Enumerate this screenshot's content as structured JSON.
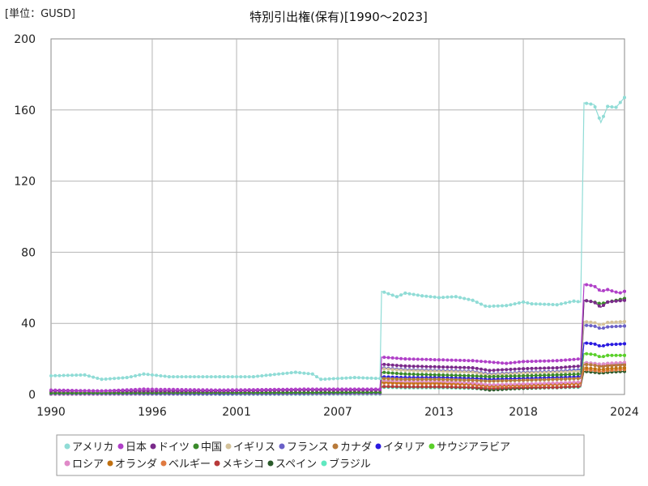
{
  "unit_label": "[単位：GUSD]",
  "chart_data": {
    "type": "line",
    "title": "特別引出権(保有)[1990～2023]",
    "xlabel": "",
    "ylabel": "",
    "xlim": [
      1990,
      2024
    ],
    "ylim": [
      0,
      200
    ],
    "x_ticks": [
      1990,
      1996,
      2001,
      2007,
      2013,
      2018,
      2024
    ],
    "y_ticks": [
      0,
      40,
      80,
      120,
      160,
      200
    ],
    "grid": true,
    "legend_position": "bottom",
    "series": [
      {
        "name": "アメリカ",
        "color": "#90dcd6",
        "points": [
          [
            1990,
            10.5
          ],
          [
            1992,
            11
          ],
          [
            1993,
            8.5
          ],
          [
            1994.5,
            9.5
          ],
          [
            1995.5,
            11.5
          ],
          [
            1997,
            10
          ],
          [
            2000,
            10
          ],
          [
            2002,
            10
          ],
          [
            2003,
            11
          ],
          [
            2004.5,
            12.5
          ],
          [
            2005.5,
            11.5
          ],
          [
            2006,
            8.5
          ],
          [
            2008,
            9.5
          ],
          [
            2009.5,
            9
          ],
          [
            2009.6,
            58
          ],
          [
            2010.5,
            55
          ],
          [
            2011,
            57
          ],
          [
            2012,
            55.5
          ],
          [
            2013,
            54.5
          ],
          [
            2014,
            55
          ],
          [
            2015,
            53
          ],
          [
            2015.8,
            49.5
          ],
          [
            2017,
            50
          ],
          [
            2018,
            52
          ],
          [
            2018.5,
            51
          ],
          [
            2020,
            50.5
          ],
          [
            2021,
            52.5
          ],
          [
            2021.4,
            52
          ],
          [
            2021.6,
            164
          ],
          [
            2022.2,
            163
          ],
          [
            2022.6,
            153
          ],
          [
            2023,
            162
          ],
          [
            2023.5,
            161.5
          ],
          [
            2024,
            167
          ]
        ]
      },
      {
        "name": "日本",
        "color": "#b040c8",
        "points": [
          [
            1990,
            2.5
          ],
          [
            1993,
            2
          ],
          [
            1995.5,
            3
          ],
          [
            2000,
            2.5
          ],
          [
            2005,
            3
          ],
          [
            2009.5,
            3
          ],
          [
            2009.6,
            21
          ],
          [
            2011,
            20
          ],
          [
            2013,
            19.5
          ],
          [
            2015,
            19
          ],
          [
            2017,
            17.5
          ],
          [
            2018,
            18.5
          ],
          [
            2020,
            19
          ],
          [
            2021.4,
            20
          ],
          [
            2021.6,
            62
          ],
          [
            2022.2,
            61
          ],
          [
            2022.6,
            58
          ],
          [
            2023,
            59
          ],
          [
            2023.7,
            57
          ],
          [
            2024,
            58
          ]
        ]
      },
      {
        "name": "ドイツ",
        "color": "#7a2a8a",
        "points": [
          [
            1990,
            2
          ],
          [
            1995,
            2
          ],
          [
            2000,
            2
          ],
          [
            2005,
            2.5
          ],
          [
            2009.5,
            2.5
          ],
          [
            2009.6,
            17
          ],
          [
            2011,
            16
          ],
          [
            2013,
            15.5
          ],
          [
            2015,
            15
          ],
          [
            2016,
            13.5
          ],
          [
            2018,
            14.5
          ],
          [
            2020,
            15
          ],
          [
            2021.4,
            16
          ],
          [
            2021.6,
            53
          ],
          [
            2022.2,
            52
          ],
          [
            2022.6,
            49
          ],
          [
            2023,
            52
          ],
          [
            2024,
            53
          ]
        ]
      },
      {
        "name": "中国",
        "color": "#3a8a2a",
        "points": [
          [
            1990,
            0.8
          ],
          [
            2000,
            1
          ],
          [
            2009.5,
            1.2
          ],
          [
            2009.6,
            12.5
          ],
          [
            2011,
            11.5
          ],
          [
            2013,
            11
          ],
          [
            2015,
            10.5
          ],
          [
            2016,
            10
          ],
          [
            2018,
            10.5
          ],
          [
            2020,
            11
          ],
          [
            2021.4,
            11.5
          ],
          [
            2021.6,
            53
          ],
          [
            2022.2,
            52
          ],
          [
            2022.6,
            51
          ],
          [
            2023,
            52
          ],
          [
            2024,
            54
          ]
        ]
      },
      {
        "name": "イギリス",
        "color": "#d4c29a",
        "points": [
          [
            1990,
            1
          ],
          [
            2000,
            1
          ],
          [
            2009.5,
            1.2
          ],
          [
            2009.6,
            14.5
          ],
          [
            2011,
            13.5
          ],
          [
            2013,
            13
          ],
          [
            2015,
            12.5
          ],
          [
            2016,
            11
          ],
          [
            2018,
            12
          ],
          [
            2020,
            12.5
          ],
          [
            2021.4,
            13
          ],
          [
            2021.6,
            41
          ],
          [
            2022.2,
            40.5
          ],
          [
            2022.6,
            39
          ],
          [
            2023,
            40.5
          ],
          [
            2024,
            41
          ]
        ]
      },
      {
        "name": "フランス",
        "color": "#6a60c8",
        "points": [
          [
            1990,
            0.5
          ],
          [
            2000,
            0.8
          ],
          [
            2009.5,
            1
          ],
          [
            2009.6,
            15
          ],
          [
            2011,
            14
          ],
          [
            2013,
            13.5
          ],
          [
            2015,
            13
          ],
          [
            2016,
            11.5
          ],
          [
            2018,
            12.5
          ],
          [
            2020,
            13
          ],
          [
            2021.4,
            14
          ],
          [
            2021.6,
            39
          ],
          [
            2022.2,
            38.5
          ],
          [
            2022.6,
            37
          ],
          [
            2023,
            38
          ],
          [
            2024,
            38.5
          ]
        ]
      },
      {
        "name": "カナダ",
        "color": "#b87a3a",
        "points": [
          [
            1990,
            1
          ],
          [
            2000,
            1
          ],
          [
            2009.5,
            1.2
          ],
          [
            2009.6,
            9
          ],
          [
            2011,
            8.5
          ],
          [
            2013,
            8.5
          ],
          [
            2015,
            8
          ],
          [
            2016,
            7.5
          ],
          [
            2018,
            8
          ],
          [
            2020,
            8.5
          ],
          [
            2021.4,
            9
          ],
          [
            2021.6,
            17
          ],
          [
            2022.2,
            16.5
          ],
          [
            2022.6,
            15.5
          ],
          [
            2023,
            16
          ],
          [
            2024,
            16.5
          ]
        ]
      },
      {
        "name": "イタリア",
        "color": "#2a1ae0",
        "points": [
          [
            1990,
            0.5
          ],
          [
            2000,
            0.5
          ],
          [
            2009.5,
            0.8
          ],
          [
            2009.6,
            10
          ],
          [
            2011,
            9.5
          ],
          [
            2013,
            9.5
          ],
          [
            2015,
            9
          ],
          [
            2016,
            8.5
          ],
          [
            2018,
            9
          ],
          [
            2020,
            9.5
          ],
          [
            2021.4,
            10
          ],
          [
            2021.6,
            29
          ],
          [
            2022.2,
            28.5
          ],
          [
            2022.6,
            27
          ],
          [
            2023,
            28
          ],
          [
            2024,
            28.5
          ]
        ]
      },
      {
        "name": "サウジアラビア",
        "color": "#5ad02a",
        "points": [
          [
            1990,
            0.8
          ],
          [
            2000,
            0.8
          ],
          [
            2009.5,
            1
          ],
          [
            2009.6,
            9
          ],
          [
            2011,
            8.5
          ],
          [
            2013,
            8.5
          ],
          [
            2015,
            8
          ],
          [
            2016,
            7.5
          ],
          [
            2018,
            8
          ],
          [
            2020,
            8.5
          ],
          [
            2021.4,
            9
          ],
          [
            2021.6,
            23
          ],
          [
            2022.2,
            22.5
          ],
          [
            2022.6,
            21
          ],
          [
            2023,
            22
          ],
          [
            2024,
            22
          ]
        ]
      },
      {
        "name": "ロシア",
        "color": "#e08ac8",
        "points": [
          [
            1990,
            0.1
          ],
          [
            2000,
            0.3
          ],
          [
            2009.5,
            0.5
          ],
          [
            2009.6,
            8
          ],
          [
            2011,
            7.5
          ],
          [
            2013,
            7.5
          ],
          [
            2015,
            6.5
          ],
          [
            2016,
            5.5
          ],
          [
            2018,
            6
          ],
          [
            2020,
            6.5
          ],
          [
            2021.4,
            7
          ],
          [
            2021.6,
            18
          ],
          [
            2022.2,
            17.5
          ],
          [
            2022.6,
            17
          ],
          [
            2023,
            17.5
          ],
          [
            2024,
            18
          ]
        ]
      },
      {
        "name": "オランダ",
        "color": "#c07010",
        "points": [
          [
            1990,
            1
          ],
          [
            2000,
            1
          ],
          [
            2009.5,
            1
          ],
          [
            2009.6,
            7
          ],
          [
            2011,
            6.5
          ],
          [
            2013,
            6.5
          ],
          [
            2015,
            6
          ],
          [
            2016,
            5
          ],
          [
            2018,
            5.5
          ],
          [
            2020,
            6
          ],
          [
            2021.4,
            6.5
          ],
          [
            2021.6,
            15
          ],
          [
            2022.2,
            14.5
          ],
          [
            2022.6,
            14
          ],
          [
            2023,
            14.5
          ],
          [
            2024,
            15
          ]
        ]
      },
      {
        "name": "ベルギー",
        "color": "#e07a40",
        "points": [
          [
            1990,
            0.5
          ],
          [
            2000,
            0.5
          ],
          [
            2009.5,
            0.8
          ],
          [
            2009.6,
            6.5
          ],
          [
            2011,
            6
          ],
          [
            2013,
            6
          ],
          [
            2015,
            5.5
          ],
          [
            2016,
            4.5
          ],
          [
            2018,
            5
          ],
          [
            2020,
            5.5
          ],
          [
            2021.4,
            6
          ],
          [
            2021.6,
            14
          ],
          [
            2022.2,
            13.5
          ],
          [
            2022.6,
            13
          ],
          [
            2023,
            13.5
          ],
          [
            2024,
            14
          ]
        ]
      },
      {
        "name": "メキシコ",
        "color": "#b83a3a",
        "points": [
          [
            1990,
            0.2
          ],
          [
            2000,
            0.5
          ],
          [
            2009.5,
            0.5
          ],
          [
            2009.6,
            4.5
          ],
          [
            2011,
            4.3
          ],
          [
            2013,
            4.3
          ],
          [
            2015,
            4
          ],
          [
            2016,
            3.5
          ],
          [
            2018,
            4
          ],
          [
            2020,
            4
          ],
          [
            2021.4,
            4.5
          ],
          [
            2021.6,
            17
          ],
          [
            2022.2,
            16.5
          ],
          [
            2022.6,
            16
          ],
          [
            2023,
            16.5
          ],
          [
            2024,
            17
          ]
        ]
      },
      {
        "name": "スペイン",
        "color": "#2a5a2a",
        "points": [
          [
            1990,
            0.2
          ],
          [
            2000,
            0.3
          ],
          [
            2009.5,
            0.5
          ],
          [
            2009.6,
            4.5
          ],
          [
            2011,
            4.3
          ],
          [
            2013,
            4.3
          ],
          [
            2015,
            3.8
          ],
          [
            2016,
            2.5
          ],
          [
            2018,
            3.5
          ],
          [
            2020,
            4
          ],
          [
            2021.4,
            4.5
          ],
          [
            2021.6,
            13
          ],
          [
            2022.2,
            12.5
          ],
          [
            2022.6,
            12
          ],
          [
            2023,
            12.5
          ],
          [
            2024,
            13
          ]
        ]
      },
      {
        "name": "ブラジル",
        "color": "#60e8c0",
        "points": [
          [
            1990,
            0.1
          ],
          [
            2000,
            0.1
          ],
          [
            2009.5,
            0.2
          ],
          [
            2009.6,
            4
          ],
          [
            2011,
            3.8
          ],
          [
            2013,
            3.8
          ],
          [
            2015,
            3.5
          ],
          [
            2016,
            3
          ],
          [
            2018,
            3.5
          ],
          [
            2020,
            3.8
          ],
          [
            2021.4,
            4
          ],
          [
            2021.6,
            18
          ],
          [
            2022.2,
            17.5
          ],
          [
            2022.6,
            17
          ],
          [
            2023,
            17.5
          ],
          [
            2024,
            17.5
          ]
        ]
      }
    ]
  }
}
